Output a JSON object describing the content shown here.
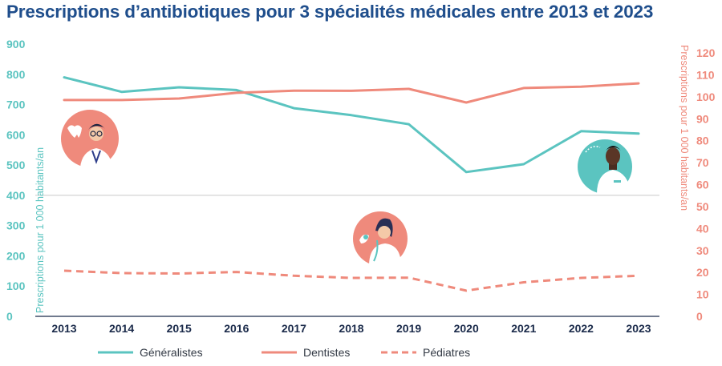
{
  "chart_data": {
    "type": "line",
    "title": "Prescriptions d’antibiotiques pour 3 spécialités médicales entre 2013 et 2023",
    "x": [
      "2013",
      "2014",
      "2015",
      "2016",
      "2017",
      "2018",
      "2019",
      "2020",
      "2021",
      "2022",
      "2023"
    ],
    "y_left": {
      "label": "Prescriptions pour 1 000 habitants/an",
      "range": [
        0,
        900
      ],
      "ticks": [
        "0",
        "100",
        "200",
        "300",
        "400",
        "500",
        "600",
        "700",
        "800",
        "900"
      ]
    },
    "y_right": {
      "label": "Prescriptions pour 1 000 habitants/an",
      "range": [
        0,
        125
      ],
      "ticks": [
        "0",
        "10",
        "20",
        "30",
        "40",
        "50",
        "60",
        "70",
        "80",
        "90",
        "100",
        "110",
        "120"
      ]
    },
    "series": [
      {
        "name": "Généralistes",
        "axis": "left",
        "style": "solid",
        "color": "#5bc4c0",
        "values": [
          790,
          742,
          757,
          748,
          688,
          665,
          635,
          477,
          503,
          612,
          604
        ]
      },
      {
        "name": "Dentistes",
        "axis": "right",
        "style": "solid",
        "color": "#ef8a7c",
        "values": [
          98.5,
          98.5,
          99.2,
          101.8,
          102.8,
          102.7,
          103.6,
          97.4,
          104.0,
          104.6,
          106.1
        ]
      },
      {
        "name": "Pédiatres",
        "axis": "right",
        "style": "dashed",
        "color": "#ef8a7c",
        "values": [
          20.8,
          19.7,
          19.5,
          20.2,
          18.5,
          17.5,
          17.6,
          11.7,
          15.5,
          17.5,
          18.5
        ]
      }
    ],
    "grid": false,
    "legend": "bottom",
    "colors": {
      "title": "#1f4e8c",
      "left_axis": "#5bc4c0",
      "right_axis": "#ef8a7c",
      "x_axis": "#1a2a4a"
    },
    "illustrations": [
      "dentist-illustration-icon",
      "pediatrician-illustration-icon",
      "general-practitioner-illustration-icon"
    ]
  }
}
